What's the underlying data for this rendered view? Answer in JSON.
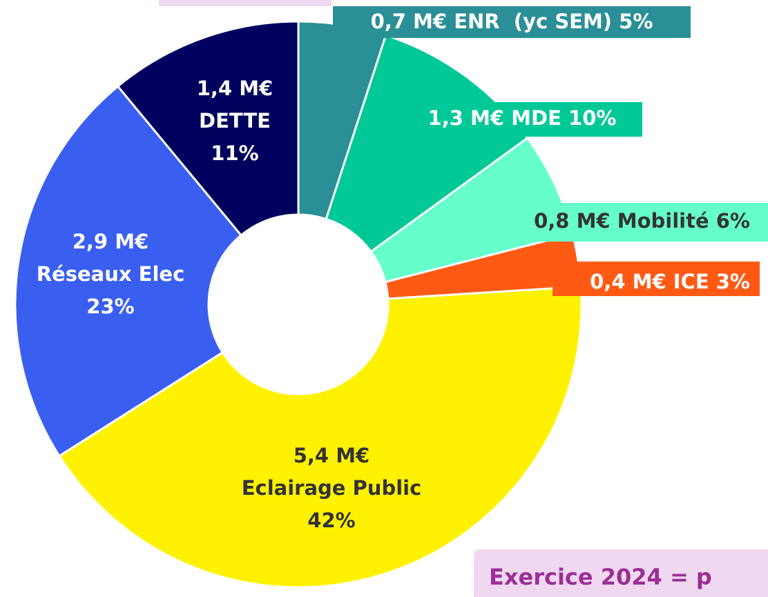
{
  "chart_data": {
    "type": "pie",
    "categories": [
      "ENR  (yc SEM)",
      "MDE",
      "Mobilité",
      "ICE",
      "Eclairage Public",
      "Réseaux Elec",
      "DETTE"
    ],
    "values": [
      5,
      10,
      6,
      3,
      42,
      23,
      11
    ],
    "value_labels": [
      "5%",
      "10%",
      "6%",
      "3%",
      "42%",
      "23%",
      "11%"
    ],
    "amounts": [
      0.7,
      1.3,
      0.8,
      0.4,
      5.4,
      2.9,
      1.4
    ],
    "amount_labels": [
      "0,7 M€",
      "1,3 M€",
      "0,8 M€",
      "0,4 M€",
      "5,4 M€",
      "2,9 M€",
      "1,4 M€"
    ],
    "colors": [
      "#2b8f97",
      "#00c896",
      "#66ffcc",
      "#ff5a14",
      "#fff200",
      "#3a5ff0",
      "#00005e"
    ],
    "annotation": "Exercice 2024 = p"
  }
}
